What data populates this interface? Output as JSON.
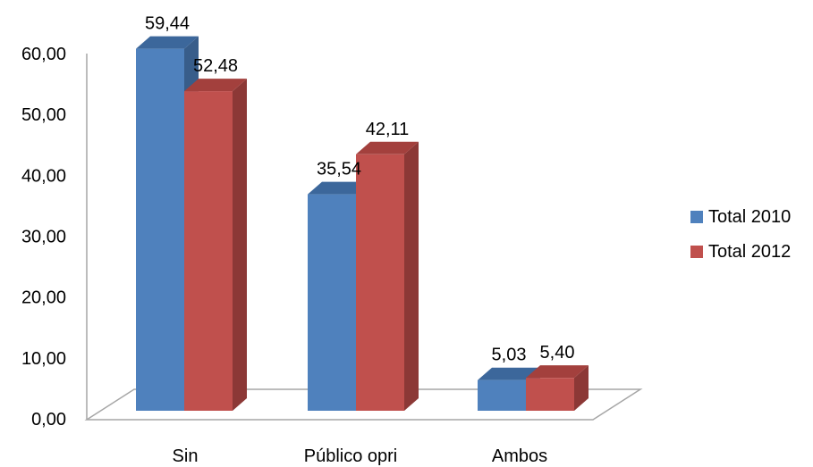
{
  "chart_data": {
    "type": "bar",
    "categories": [
      "Sin",
      "Público opri",
      "Ambos"
    ],
    "series": [
      {
        "name": "Total 2010",
        "values": [
          59.44,
          35.54,
          5.03
        ],
        "labels": [
          "59,44",
          "35,54",
          "5,03"
        ],
        "color": "#4F81BD",
        "side_color": "#385D8A",
        "top_color": "#3C679B"
      },
      {
        "name": "Total 2012",
        "values": [
          52.48,
          42.11,
          5.4
        ],
        "labels": [
          "52,48",
          "42,11",
          "5,40"
        ],
        "color": "#C0504D",
        "side_color": "#8C3836",
        "top_color": "#A3403D"
      }
    ],
    "y_ticks": [
      "0,00",
      "10,00",
      "20,00",
      "30,00",
      "40,00",
      "50,00",
      "60,00"
    ],
    "ylim": [
      0,
      60
    ],
    "grid": false,
    "legend_position": "right",
    "title": "",
    "xlabel": "",
    "ylabel": ""
  }
}
